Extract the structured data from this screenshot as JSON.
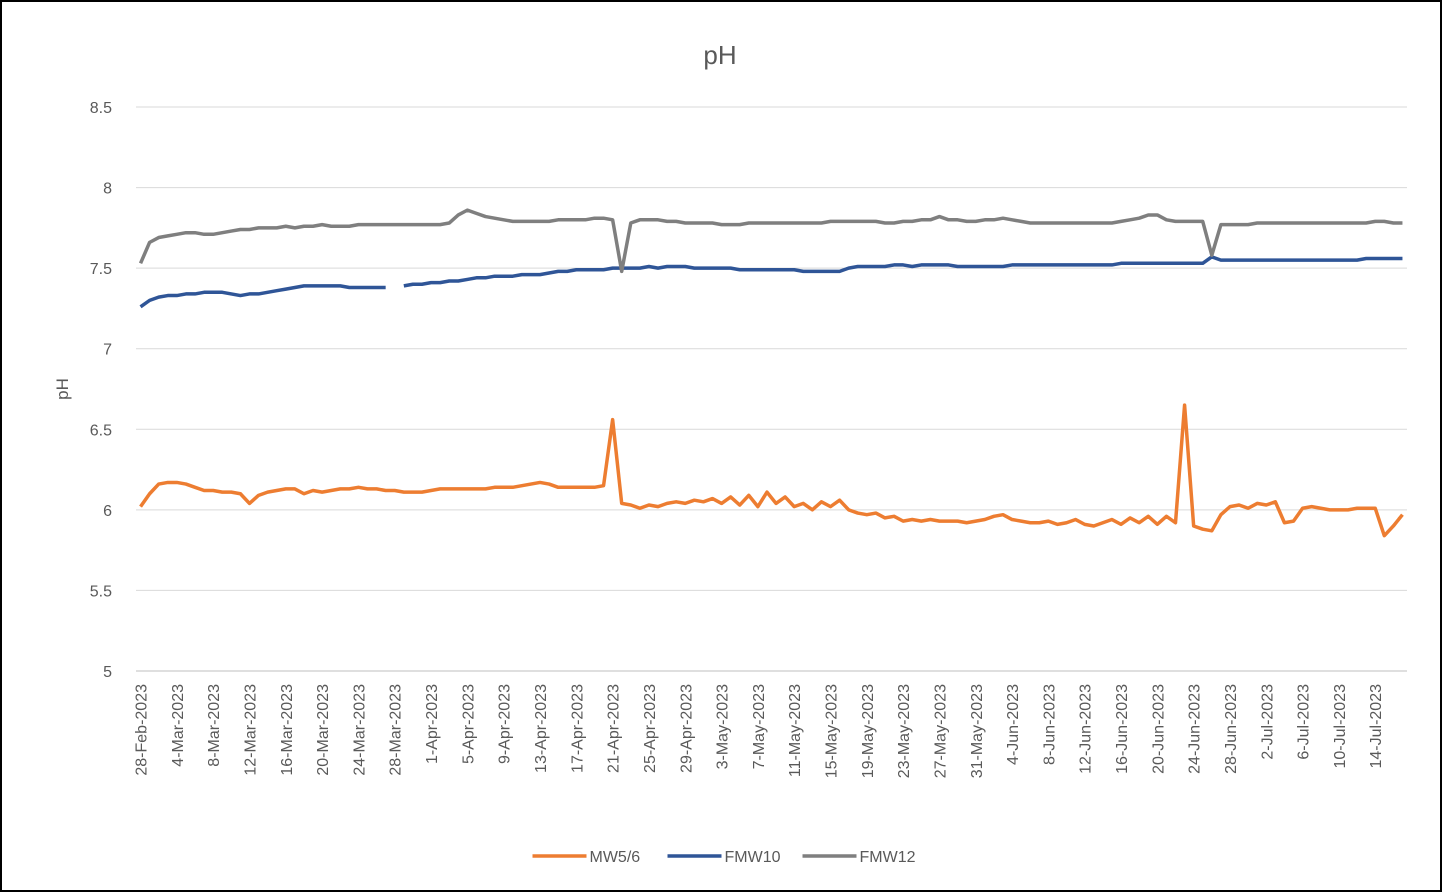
{
  "chart_data": {
    "type": "line",
    "title": "pH",
    "y_label": "pH",
    "categories": [
      "28-Feb-2023",
      null,
      null,
      null,
      "4-Mar-2023",
      null,
      null,
      null,
      "8-Mar-2023",
      null,
      null,
      null,
      "12-Mar-2023",
      null,
      null,
      null,
      "16-Mar-2023",
      null,
      null,
      null,
      "20-Mar-2023",
      null,
      null,
      null,
      "24-Mar-2023",
      null,
      null,
      null,
      "28-Mar-2023",
      null,
      null,
      null,
      "1-Apr-2023",
      null,
      null,
      null,
      "5-Apr-2023",
      null,
      null,
      null,
      "9-Apr-2023",
      null,
      null,
      null,
      "13-Apr-2023",
      null,
      null,
      null,
      "17-Apr-2023",
      null,
      null,
      null,
      "21-Apr-2023",
      null,
      null,
      null,
      "25-Apr-2023",
      null,
      null,
      null,
      "29-Apr-2023",
      null,
      null,
      null,
      "3-May-2023",
      null,
      null,
      null,
      "7-May-2023",
      null,
      null,
      null,
      "11-May-2023",
      null,
      null,
      null,
      "15-May-2023",
      null,
      null,
      null,
      "19-May-2023",
      null,
      null,
      null,
      "23-May-2023",
      null,
      null,
      null,
      "27-May-2023",
      null,
      null,
      null,
      "31-May-2023",
      null,
      null,
      null,
      "4-Jun-2023",
      null,
      null,
      null,
      "8-Jun-2023",
      null,
      null,
      null,
      "12-Jun-2023",
      null,
      null,
      null,
      "16-Jun-2023",
      null,
      null,
      null,
      "20-Jun-2023",
      null,
      null,
      null,
      "24-Jun-2023",
      null,
      null,
      null,
      "28-Jun-2023",
      null,
      null,
      null,
      "2-Jul-2023",
      null,
      null,
      null,
      "6-Jul-2023",
      null,
      null,
      null,
      "10-Jul-2023",
      null,
      null,
      null,
      "14-Jul-2023",
      null,
      null,
      null
    ],
    "series": [
      {
        "name": "MW5/6",
        "color": "#ed7d31",
        "values": [
          6.02,
          6.1,
          6.16,
          6.17,
          6.17,
          6.16,
          6.14,
          6.12,
          6.12,
          6.11,
          6.11,
          6.1,
          6.04,
          6.09,
          6.11,
          6.12,
          6.13,
          6.13,
          6.1,
          6.12,
          6.11,
          6.12,
          6.13,
          6.13,
          6.14,
          6.13,
          6.13,
          6.12,
          6.12,
          6.11,
          6.11,
          6.11,
          6.12,
          6.13,
          6.13,
          6.13,
          6.13,
          6.13,
          6.13,
          6.14,
          6.14,
          6.14,
          6.15,
          6.16,
          6.17,
          6.16,
          6.14,
          6.14,
          6.14,
          6.14,
          6.14,
          6.15,
          6.56,
          6.04,
          6.03,
          6.01,
          6.03,
          6.02,
          6.04,
          6.05,
          6.04,
          6.06,
          6.05,
          6.07,
          6.04,
          6.08,
          6.03,
          6.09,
          6.02,
          6.11,
          6.04,
          6.08,
          6.02,
          6.04,
          6.0,
          6.05,
          6.02,
          6.06,
          6.0,
          5.98,
          5.97,
          5.98,
          5.95,
          5.96,
          5.93,
          5.94,
          5.93,
          5.94,
          5.93,
          5.93,
          5.93,
          5.92,
          5.93,
          5.94,
          5.96,
          5.97,
          5.94,
          5.93,
          5.92,
          5.92,
          5.93,
          5.91,
          5.92,
          5.94,
          5.91,
          5.9,
          5.92,
          5.94,
          5.91,
          5.95,
          5.92,
          5.96,
          5.91,
          5.96,
          5.92,
          6.65,
          5.9,
          5.88,
          5.87,
          5.97,
          6.02,
          6.03,
          6.01,
          6.04,
          6.03,
          6.05,
          5.92,
          5.93,
          6.01,
          6.02,
          6.01,
          6.0,
          6.0,
          6.0,
          6.01,
          6.01,
          6.01,
          5.84,
          5.9,
          5.97
        ]
      },
      {
        "name": "FMW10",
        "color": "#2f5597",
        "values": [
          7.26,
          7.3,
          7.32,
          7.33,
          7.33,
          7.34,
          7.34,
          7.35,
          7.35,
          7.35,
          7.34,
          7.33,
          7.34,
          7.34,
          7.35,
          7.36,
          7.37,
          7.38,
          7.39,
          7.39,
          7.39,
          7.39,
          7.39,
          7.38,
          7.38,
          7.38,
          7.38,
          7.38,
          null,
          7.39,
          7.4,
          7.4,
          7.41,
          7.41,
          7.42,
          7.42,
          7.43,
          7.44,
          7.44,
          7.45,
          7.45,
          7.45,
          7.46,
          7.46,
          7.46,
          7.47,
          7.48,
          7.48,
          7.49,
          7.49,
          7.49,
          7.49,
          7.5,
          7.5,
          7.5,
          7.5,
          7.51,
          7.5,
          7.51,
          7.51,
          7.51,
          7.5,
          7.5,
          7.5,
          7.5,
          7.5,
          7.49,
          7.49,
          7.49,
          7.49,
          7.49,
          7.49,
          7.49,
          7.48,
          7.48,
          7.48,
          7.48,
          7.48,
          7.5,
          7.51,
          7.51,
          7.51,
          7.51,
          7.52,
          7.52,
          7.51,
          7.52,
          7.52,
          7.52,
          7.52,
          7.51,
          7.51,
          7.51,
          7.51,
          7.51,
          7.51,
          7.52,
          7.52,
          7.52,
          7.52,
          7.52,
          7.52,
          7.52,
          7.52,
          7.52,
          7.52,
          7.52,
          7.52,
          7.53,
          7.53,
          7.53,
          7.53,
          7.53,
          7.53,
          7.53,
          7.53,
          7.53,
          7.53,
          7.57,
          7.55,
          7.55,
          7.55,
          7.55,
          7.55,
          7.55,
          7.55,
          7.55,
          7.55,
          7.55,
          7.55,
          7.55,
          7.55,
          7.55,
          7.55,
          7.55,
          7.56,
          7.56,
          7.56,
          7.56,
          7.56
        ]
      },
      {
        "name": "FMW12",
        "color": "#7f7f7f",
        "values": [
          7.53,
          7.66,
          7.69,
          7.7,
          7.71,
          7.72,
          7.72,
          7.71,
          7.71,
          7.72,
          7.73,
          7.74,
          7.74,
          7.75,
          7.75,
          7.75,
          7.76,
          7.75,
          7.76,
          7.76,
          7.77,
          7.76,
          7.76,
          7.76,
          7.77,
          7.77,
          7.77,
          7.77,
          7.77,
          7.77,
          7.77,
          7.77,
          7.77,
          7.77,
          7.78,
          7.83,
          7.86,
          7.84,
          7.82,
          7.81,
          7.8,
          7.79,
          7.79,
          7.79,
          7.79,
          7.79,
          7.8,
          7.8,
          7.8,
          7.8,
          7.81,
          7.81,
          7.8,
          7.48,
          7.78,
          7.8,
          7.8,
          7.8,
          7.79,
          7.79,
          7.78,
          7.78,
          7.78,
          7.78,
          7.77,
          7.77,
          7.77,
          7.78,
          7.78,
          7.78,
          7.78,
          7.78,
          7.78,
          7.78,
          7.78,
          7.78,
          7.79,
          7.79,
          7.79,
          7.79,
          7.79,
          7.79,
          7.78,
          7.78,
          7.79,
          7.79,
          7.8,
          7.8,
          7.82,
          7.8,
          7.8,
          7.79,
          7.79,
          7.8,
          7.8,
          7.81,
          7.8,
          7.79,
          7.78,
          7.78,
          7.78,
          7.78,
          7.78,
          7.78,
          7.78,
          7.78,
          7.78,
          7.78,
          7.79,
          7.8,
          7.81,
          7.83,
          7.83,
          7.8,
          7.79,
          7.79,
          7.79,
          7.79,
          7.58,
          7.77,
          7.77,
          7.77,
          7.77,
          7.78,
          7.78,
          7.78,
          7.78,
          7.78,
          7.78,
          7.78,
          7.78,
          7.78,
          7.78,
          7.78,
          7.78,
          7.78,
          7.79,
          7.79,
          7.78,
          7.78
        ]
      }
    ],
    "ylim": [
      5,
      8.5
    ],
    "yticks": [
      5,
      5.5,
      6,
      6.5,
      7,
      7.5,
      8,
      8.5
    ],
    "grid": true,
    "legend": "bottom"
  }
}
